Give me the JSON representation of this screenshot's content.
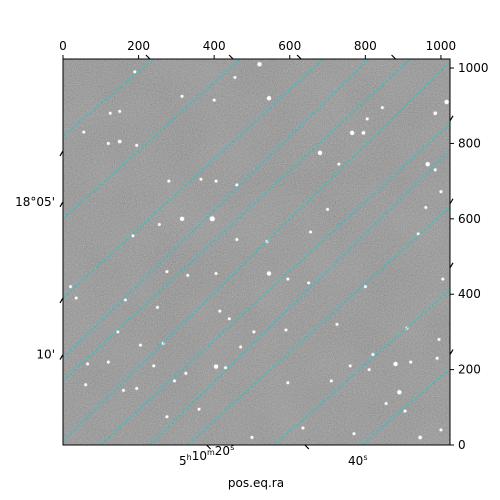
{
  "chart_data": {
    "type": "image",
    "image_kind": "astronomical grayscale sky image with WCS coordinate grid",
    "pixel_axes": {
      "x_range": [
        0,
        1024
      ],
      "y_range": [
        0,
        1024
      ],
      "top_ticks": [
        0,
        200,
        400,
        600,
        800,
        1000
      ],
      "top_tick_labels": [
        "0",
        "200",
        "400",
        "600",
        "800",
        "1000"
      ],
      "right_ticks": [
        0,
        200,
        400,
        600,
        800,
        1000
      ],
      "right_tick_labels": [
        "0",
        "200",
        "400",
        "600",
        "800",
        "1000"
      ]
    },
    "world_axes": {
      "bottom_label": "pos.eq.ra",
      "bottom_tick_labels": [
        {
          "text": "5h10m20s",
          "x_data": 380
        },
        {
          "text": "40s",
          "x_data": 780
        }
      ],
      "left_tick_labels": [
        {
          "text": "18°05'",
          "y_data": 645
        },
        {
          "text": "10'",
          "y_data": 240
        }
      ],
      "left_edge_ticks_y_data": [
        780,
        390
      ],
      "right_edge_ticks_y_data": [
        860,
        640,
        470,
        240
      ],
      "top_edge_ticks_x_data": [
        230,
        450,
        630,
        880
      ],
      "bottom_edge_ticks_x_data": [
        380,
        640
      ]
    },
    "grid": {
      "on": true,
      "color": "#00d5d5",
      "style": "dashed",
      "lines": [
        {
          "x1": -10,
          "y1": 810,
          "x2": 240,
          "y2": 1024
        },
        {
          "x1": -10,
          "y1": 590,
          "x2": 470,
          "y2": 1024
        },
        {
          "x1": -10,
          "y1": 380,
          "x2": 690,
          "y2": 1024
        },
        {
          "x1": -10,
          "y1": 160,
          "x2": 920,
          "y2": 1024
        },
        {
          "x1": 100,
          "y1": 0,
          "x2": 1034,
          "y2": 860
        },
        {
          "x1": 330,
          "y1": 0,
          "x2": 1034,
          "y2": 640
        },
        {
          "x1": 560,
          "y1": 0,
          "x2": 1034,
          "y2": 420
        },
        {
          "x1": 790,
          "y1": 0,
          "x2": 1034,
          "y2": 210
        },
        {
          "x1": -10,
          "y1": 1024,
          "x2": 0,
          "y2": 1024
        },
        {
          "x1": -10,
          "y1": 0,
          "x2": 1034,
          "y2": 1024
        },
        {
          "x1": -10,
          "y1": 220,
          "x2": 810,
          "y2": 1024
        },
        {
          "x1": 230,
          "y1": 0,
          "x2": 1034,
          "y2": 790
        }
      ]
    },
    "stars": [
      [
        520,
        1010,
        3
      ],
      [
        545,
        920,
        3
      ],
      [
        1015,
        910,
        3
      ],
      [
        985,
        880,
        2.5
      ],
      [
        845,
        895,
        2
      ],
      [
        150,
        885,
        2
      ],
      [
        125,
        880,
        2
      ],
      [
        55,
        830,
        2
      ],
      [
        150,
        805,
        2.5
      ],
      [
        765,
        828,
        3
      ],
      [
        795,
        828,
        2.5
      ],
      [
        805,
        865,
        2
      ],
      [
        400,
        915,
        2
      ],
      [
        195,
        795,
        2
      ],
      [
        680,
        775,
        3
      ],
      [
        365,
        705,
        2
      ],
      [
        280,
        700,
        2
      ],
      [
        405,
        700,
        2
      ],
      [
        460,
        690,
        2
      ],
      [
        985,
        730,
        2
      ],
      [
        965,
        745,
        3
      ],
      [
        1000,
        672,
        2
      ],
      [
        395,
        600,
        3.5
      ],
      [
        315,
        600,
        3
      ],
      [
        185,
        555,
        2
      ],
      [
        255,
        585,
        2
      ],
      [
        460,
        545,
        2
      ],
      [
        540,
        540,
        2
      ],
      [
        275,
        460,
        2
      ],
      [
        330,
        450,
        2
      ],
      [
        405,
        455,
        2
      ],
      [
        545,
        455,
        3
      ],
      [
        595,
        440,
        2
      ],
      [
        650,
        430,
        2
      ],
      [
        165,
        385,
        2
      ],
      [
        250,
        365,
        2
      ],
      [
        415,
        355,
        2
      ],
      [
        440,
        335,
        2
      ],
      [
        505,
        300,
        2
      ],
      [
        590,
        305,
        2
      ],
      [
        725,
        320,
        2
      ],
      [
        910,
        310,
        2
      ],
      [
        820,
        240,
        2
      ],
      [
        145,
        300,
        2
      ],
      [
        65,
        215,
        2
      ],
      [
        120,
        220,
        2
      ],
      [
        240,
        210,
        2
      ],
      [
        325,
        190,
        2
      ],
      [
        405,
        208,
        3
      ],
      [
        430,
        205,
        2
      ],
      [
        595,
        165,
        2
      ],
      [
        710,
        170,
        2
      ],
      [
        760,
        210,
        2
      ],
      [
        810,
        200,
        2
      ],
      [
        880,
        215,
        3
      ],
      [
        920,
        220,
        2
      ],
      [
        990,
        230,
        2
      ],
      [
        995,
        280,
        2
      ],
      [
        890,
        140,
        3
      ],
      [
        855,
        110,
        2
      ],
      [
        160,
        145,
        2
      ],
      [
        195,
        150,
        2
      ],
      [
        295,
        170,
        2
      ],
      [
        360,
        95,
        2
      ],
      [
        275,
        75,
        2
      ],
      [
        500,
        20,
        2
      ],
      [
        635,
        45,
        2
      ],
      [
        770,
        30,
        2
      ],
      [
        945,
        20,
        2.5
      ],
      [
        905,
        90,
        2
      ],
      [
        1000,
        40,
        2
      ],
      [
        60,
        160,
        2
      ],
      [
        35,
        390,
        2
      ],
      [
        20,
        420,
        2
      ],
      [
        205,
        265,
        2
      ],
      [
        265,
        270,
        2
      ],
      [
        470,
        260,
        2
      ],
      [
        655,
        565,
        2
      ],
      [
        700,
        625,
        2
      ],
      [
        730,
        745,
        2
      ],
      [
        190,
        990,
        2
      ],
      [
        315,
        925,
        2
      ],
      [
        455,
        975,
        2
      ],
      [
        120,
        800,
        2
      ],
      [
        940,
        560,
        2
      ],
      [
        1005,
        440,
        2
      ],
      [
        960,
        630,
        2
      ],
      [
        800,
        420,
        2
      ]
    ],
    "colors": {
      "image_background": "#808080",
      "grid": "#00d5d5",
      "axes": "#000000"
    }
  }
}
